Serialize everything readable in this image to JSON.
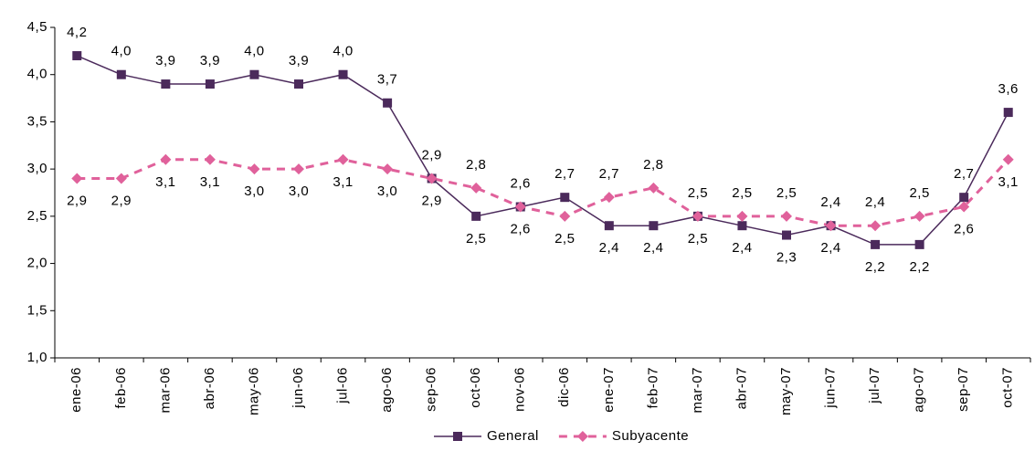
{
  "chart_data": {
    "type": "line",
    "categories": [
      "ene-06",
      "feb-06",
      "mar-06",
      "abr-06",
      "may-06",
      "jun-06",
      "jul-06",
      "ago-06",
      "sep-06",
      "oct-06",
      "nov-06",
      "dic-06",
      "ene-07",
      "feb-07",
      "mar-07",
      "abr-07",
      "may-07",
      "jun-07",
      "jul-07",
      "ago-07",
      "sep-07",
      "oct-07"
    ],
    "series": [
      {
        "name": "General",
        "color": "#4b2a5b",
        "marker": "square",
        "dash": false,
        "values": [
          4.2,
          4.0,
          3.9,
          3.9,
          4.0,
          3.9,
          4.0,
          3.7,
          2.9,
          2.5,
          2.6,
          2.7,
          2.4,
          2.4,
          2.5,
          2.4,
          2.3,
          2.4,
          2.2,
          2.2,
          2.7,
          3.6
        ],
        "value_labels": [
          "4,2",
          "4,0",
          "3,9",
          "3,9",
          "4,0",
          "3,9",
          "4,0",
          "3,7",
          "2,9",
          "2,5",
          "2,6",
          "2,7",
          "2,4",
          "2,4",
          "2,5",
          "2,4",
          "2,3",
          "2,4",
          "2,2",
          "2,2",
          "2,7",
          "3,6"
        ]
      },
      {
        "name": "Subyacente",
        "color": "#e0619b",
        "marker": "diamond",
        "dash": true,
        "values": [
          2.9,
          2.9,
          3.1,
          3.1,
          3.0,
          3.0,
          3.1,
          3.0,
          2.9,
          2.8,
          2.6,
          2.5,
          2.7,
          2.8,
          2.5,
          2.5,
          2.5,
          2.4,
          2.4,
          2.5,
          2.6,
          3.1
        ],
        "value_labels": [
          "2,9",
          "2,9",
          "3,1",
          "3,1",
          "3,0",
          "3,0",
          "3,1",
          "3,0",
          "2,9",
          "2,8",
          "2,6",
          "2,5",
          "2,7",
          "2,8",
          "2,5",
          "2,5",
          "2,5",
          "2,4",
          "2,4",
          "2,5",
          "2,6",
          "3,1"
        ]
      }
    ],
    "ylim": [
      1.0,
      4.5
    ],
    "yticks": [
      {
        "value": 1.0,
        "label": "1,0"
      },
      {
        "value": 1.5,
        "label": "1,5"
      },
      {
        "value": 2.0,
        "label": "2,0"
      },
      {
        "value": 2.5,
        "label": "2,5"
      },
      {
        "value": 3.0,
        "label": "3,0"
      },
      {
        "value": 3.5,
        "label": "3,5"
      },
      {
        "value": 4.0,
        "label": "4,0"
      },
      {
        "value": 4.5,
        "label": "4,5"
      }
    ],
    "grid": false,
    "legend": "bottom"
  }
}
